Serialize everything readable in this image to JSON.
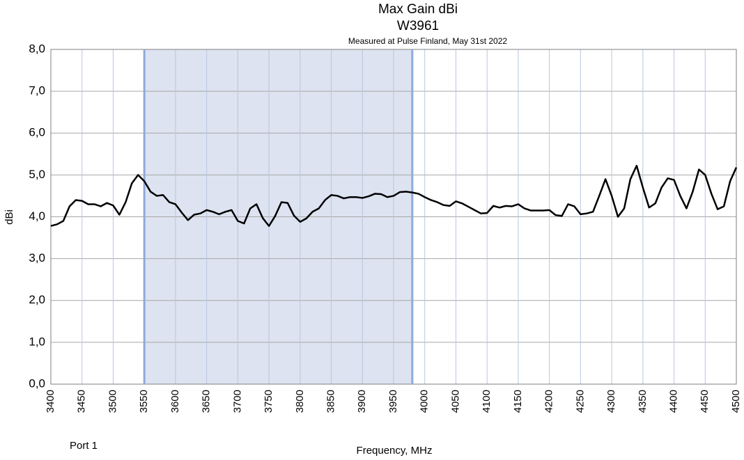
{
  "chart_data": {
    "type": "line",
    "title": "Max Gain dBi",
    "subtitle": "W3961",
    "annotation": "Measured at Pulse Finland, May 31st 2022",
    "note": "Port 1",
    "xlabel": "Frequency, MHz",
    "ylabel": "dBi",
    "x": [
      3400,
      3410,
      3420,
      3430,
      3440,
      3450,
      3460,
      3470,
      3480,
      3490,
      3500,
      3510,
      3520,
      3530,
      3540,
      3550,
      3560,
      3570,
      3580,
      3590,
      3600,
      3610,
      3620,
      3630,
      3640,
      3650,
      3660,
      3670,
      3680,
      3690,
      3700,
      3710,
      3720,
      3730,
      3740,
      3750,
      3760,
      3770,
      3780,
      3790,
      3800,
      3810,
      3820,
      3830,
      3840,
      3850,
      3860,
      3870,
      3880,
      3890,
      3900,
      3910,
      3920,
      3930,
      3940,
      3950,
      3960,
      3970,
      3980,
      3990,
      4000,
      4010,
      4020,
      4030,
      4040,
      4050,
      4060,
      4070,
      4080,
      4090,
      4100,
      4110,
      4120,
      4130,
      4140,
      4150,
      4160,
      4170,
      4180,
      4190,
      4200,
      4210,
      4220,
      4230,
      4240,
      4250,
      4260,
      4270,
      4280,
      4290,
      4300,
      4310,
      4320,
      4330,
      4340,
      4350,
      4360,
      4370,
      4380,
      4390,
      4400,
      4410,
      4420,
      4430,
      4440,
      4450,
      4460,
      4470,
      4480,
      4490,
      4500
    ],
    "series": [
      {
        "color": "#000000",
        "values": [
          3.78,
          3.82,
          3.9,
          4.25,
          4.4,
          4.38,
          4.3,
          4.3,
          4.25,
          4.33,
          4.27,
          4.05,
          4.35,
          4.8,
          5.0,
          4.85,
          4.6,
          4.5,
          4.52,
          4.35,
          4.3,
          4.1,
          3.92,
          4.05,
          4.08,
          4.16,
          4.12,
          4.06,
          4.12,
          4.16,
          3.9,
          3.84,
          4.2,
          4.3,
          3.97,
          3.78,
          4.02,
          4.35,
          4.33,
          4.03,
          3.88,
          3.96,
          4.12,
          4.2,
          4.4,
          4.52,
          4.5,
          4.44,
          4.47,
          4.47,
          4.45,
          4.49,
          4.55,
          4.54,
          4.47,
          4.5,
          4.59,
          4.6,
          4.58,
          4.55,
          4.47,
          4.4,
          4.35,
          4.28,
          4.26,
          4.37,
          4.32,
          4.24,
          4.16,
          4.08,
          4.09,
          4.26,
          4.22,
          4.26,
          4.25,
          4.3,
          4.2,
          4.15,
          4.15,
          4.15,
          4.16,
          4.04,
          4.02,
          4.3,
          4.25,
          4.06,
          4.08,
          4.12,
          4.5,
          4.9,
          4.5,
          4.0,
          4.2,
          4.9,
          5.22,
          4.7,
          4.22,
          4.32,
          4.7,
          4.92,
          4.88,
          4.5,
          4.2,
          4.6,
          5.13,
          5.0,
          4.55,
          4.18,
          4.25,
          4.85,
          5.18
        ]
      }
    ],
    "shaded_range": [
      3550,
      3980
    ],
    "shade_color": "#dde3f0",
    "shade_edge_color": "#8eaadb",
    "xlim": [
      3400,
      4500
    ],
    "xticks": [
      3400,
      3450,
      3500,
      3550,
      3600,
      3650,
      3700,
      3750,
      3800,
      3850,
      3900,
      3950,
      4000,
      4050,
      4100,
      4150,
      4200,
      4250,
      4300,
      4350,
      4400,
      4450,
      4500
    ],
    "ylim": [
      0,
      8
    ],
    "yticks": [
      {
        "value": 0,
        "label": "0,0"
      },
      {
        "value": 1,
        "label": "1,0"
      },
      {
        "value": 2,
        "label": "2,0"
      },
      {
        "value": 3,
        "label": "3,0"
      },
      {
        "value": 4,
        "label": "4,0"
      },
      {
        "value": 5,
        "label": "5,0"
      },
      {
        "value": 6,
        "label": "6,0"
      },
      {
        "value": 7,
        "label": "7,0"
      },
      {
        "value": 8,
        "label": "8,0"
      }
    ],
    "grid": true
  }
}
